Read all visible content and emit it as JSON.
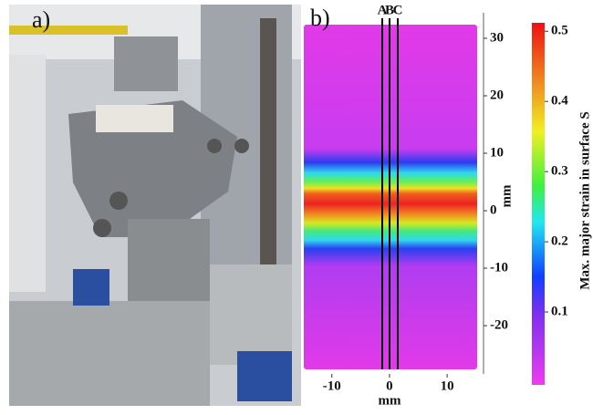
{
  "panel_a": {
    "label": "a)"
  },
  "panel_b": {
    "label": "b)",
    "lines": [
      "A",
      "B",
      "C"
    ],
    "x_axis": {
      "title": "mm",
      "lim": [
        -15.5,
        16
      ],
      "ticks": [
        -10,
        0,
        10
      ]
    },
    "y_axis": {
      "title": "mm",
      "lim": [
        -28.5,
        34
      ],
      "ticks": [
        -20,
        -10,
        0,
        10,
        20,
        30
      ]
    },
    "colorbar": {
      "title": "Max. major strain in surface S",
      "lim": [
        0,
        0.512
      ],
      "ticks": [
        0.1,
        0.2,
        0.3,
        0.4,
        0.5
      ]
    }
  }
}
